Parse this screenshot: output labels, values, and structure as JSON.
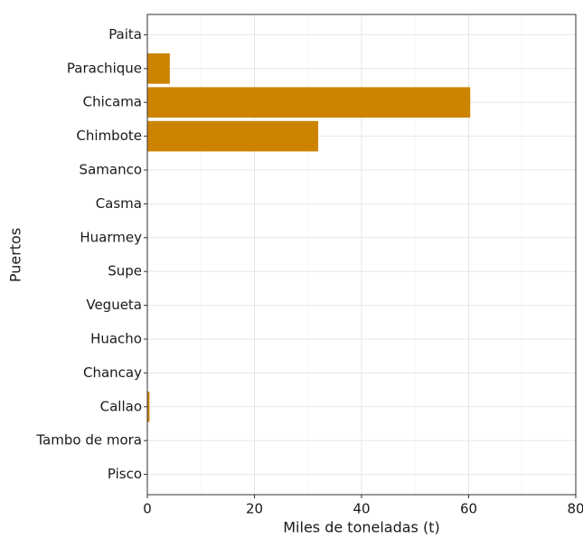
{
  "chart_data": {
    "type": "bar",
    "orientation": "horizontal",
    "x_label": "Miles de toneladas (t)",
    "y_label": "Puertos",
    "categories": [
      "Paita",
      "Parachique",
      "Chicama",
      "Chimbote",
      "Samanco",
      "Casma",
      "Huarmey",
      "Supe",
      "Vegueta",
      "Huacho",
      "Chancay",
      "Callao",
      "Tambo de mora",
      "Pisco"
    ],
    "values": [
      0,
      4.2,
      60.3,
      31.9,
      0,
      0,
      0,
      0,
      0,
      0,
      0,
      0.4,
      0,
      0
    ],
    "color": "#cc8400",
    "xlim": [
      0,
      80
    ],
    "xticks": [
      0,
      20,
      40,
      60,
      80
    ],
    "grid": true
  }
}
